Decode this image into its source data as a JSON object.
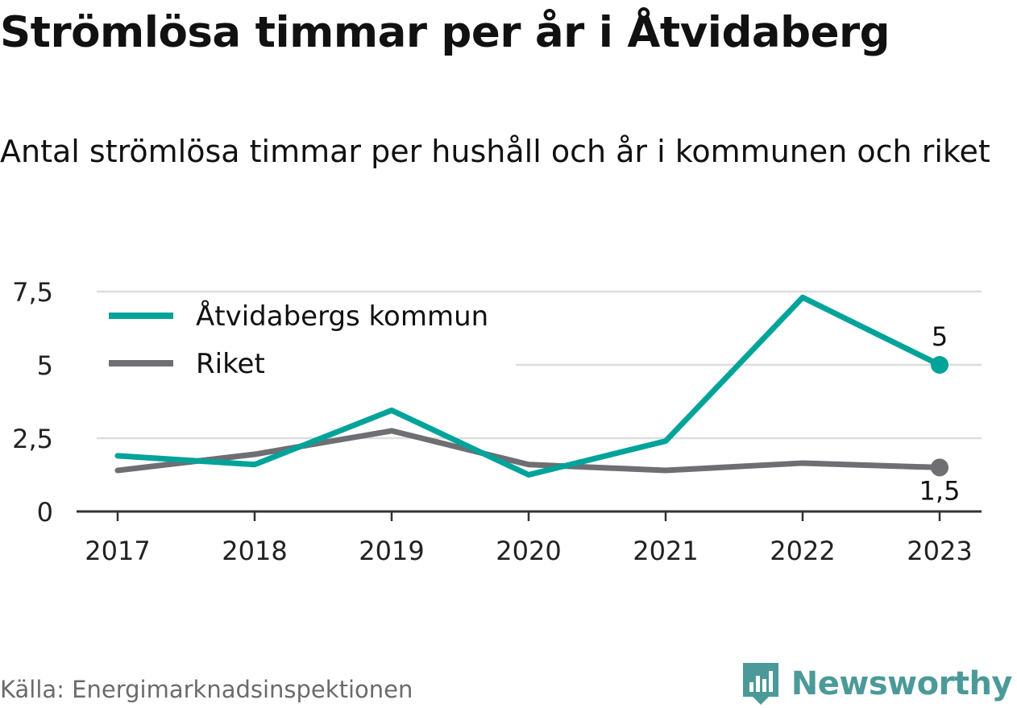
{
  "title": "Strömlösa timmar per år i Åtvidaberg",
  "subtitle": "Antal strömlösa timmar per hushåll och år i kommunen och riket",
  "source": "Källa: Energimarknadsinspektionen",
  "brand": "Newsworthy",
  "colors": {
    "kommun": "#00a39a",
    "riket": "#6e6e73",
    "grid": "#dddddd",
    "axis": "#333333",
    "brand": "#4b9a99"
  },
  "chart_data": {
    "type": "line",
    "x": [
      "2017",
      "2018",
      "2019",
      "2020",
      "2021",
      "2022",
      "2023"
    ],
    "series": [
      {
        "name": "Åtvidabergs kommun",
        "values": [
          1.9,
          1.6,
          3.45,
          1.25,
          2.4,
          7.3,
          5.0
        ],
        "end_label": "5"
      },
      {
        "name": "Riket",
        "values": [
          1.4,
          1.95,
          2.75,
          1.6,
          1.4,
          1.65,
          1.5
        ],
        "end_label": "1,5"
      }
    ],
    "yticks": [
      "0",
      "2,5",
      "5",
      "7,5"
    ],
    "ytick_values": [
      0,
      2.5,
      5,
      7.5
    ],
    "ylim": [
      0,
      7.5
    ],
    "xlabel": "",
    "ylabel": "",
    "grid": true,
    "legend": "top-left"
  }
}
